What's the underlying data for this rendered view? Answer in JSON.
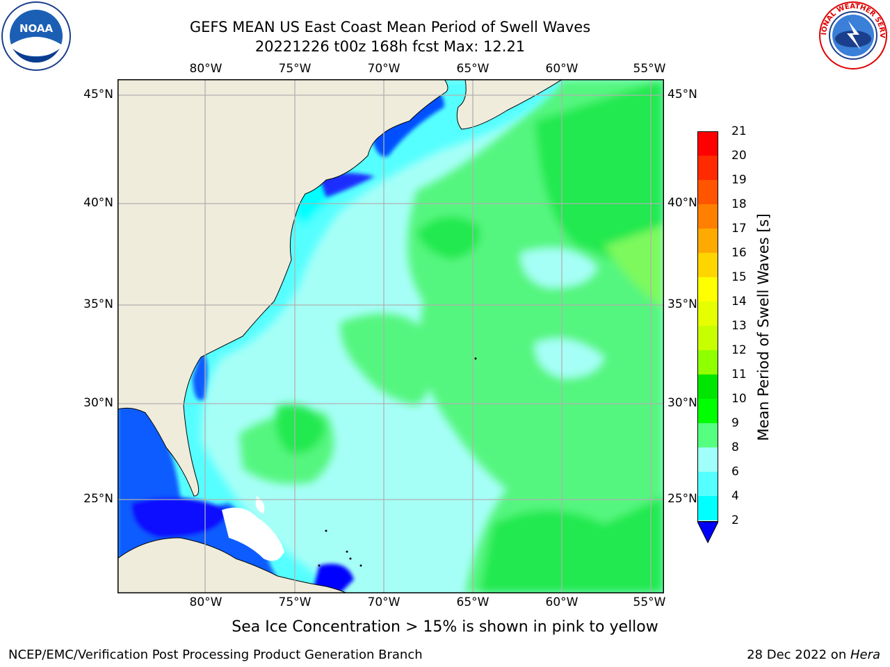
{
  "title": {
    "line1": "GEFS MEAN US East Coast Mean Period of Swell Waves",
    "line2": "20221226 t00z 168h fcst   Max: 12.21"
  },
  "logos": {
    "left": {
      "icon": "noaa-logo-icon",
      "text": "NOAA"
    },
    "right": {
      "icon": "nws-logo-icon",
      "text": "NATIONAL WEATHER SERVICE"
    }
  },
  "map": {
    "lon_ticks": [
      "80°W",
      "75°W",
      "70°W",
      "65°W",
      "60°W",
      "55°W"
    ],
    "lat_ticks": [
      "45°N",
      "40°N",
      "35°N",
      "30°N",
      "25°N"
    ],
    "land_color": "#efecdc",
    "gridline_color": "#b0b0b0"
  },
  "colorbar": {
    "title": "Mean Period of Swell Waves [s]",
    "labels": [
      "21",
      "20",
      "19",
      "18",
      "17",
      "16",
      "15",
      "14",
      "13",
      "12",
      "11",
      "10",
      "9",
      "8",
      "6",
      "4",
      "2"
    ],
    "colors_top_to_bottom": [
      "#ff0000",
      "#ff2a00",
      "#ff5500",
      "#ff8000",
      "#ffaa00",
      "#ffd500",
      "#ffff00",
      "#e5ff00",
      "#c8ff00",
      "#90ff00",
      "#00e600",
      "#00ff00",
      "#55ff80",
      "#a0fff8",
      "#55ffff",
      "#00ffff",
      "#0080ff"
    ],
    "extend_color": "#0000ff"
  },
  "subtitle": "Sea Ice Concentration > 15% is shown in pink to yellow",
  "footer": {
    "left": "NCEP/EMC/Verification Post Processing Product Generation Branch",
    "right_prefix": "28 Dec 2022 on ",
    "right_host": "Hera"
  }
}
